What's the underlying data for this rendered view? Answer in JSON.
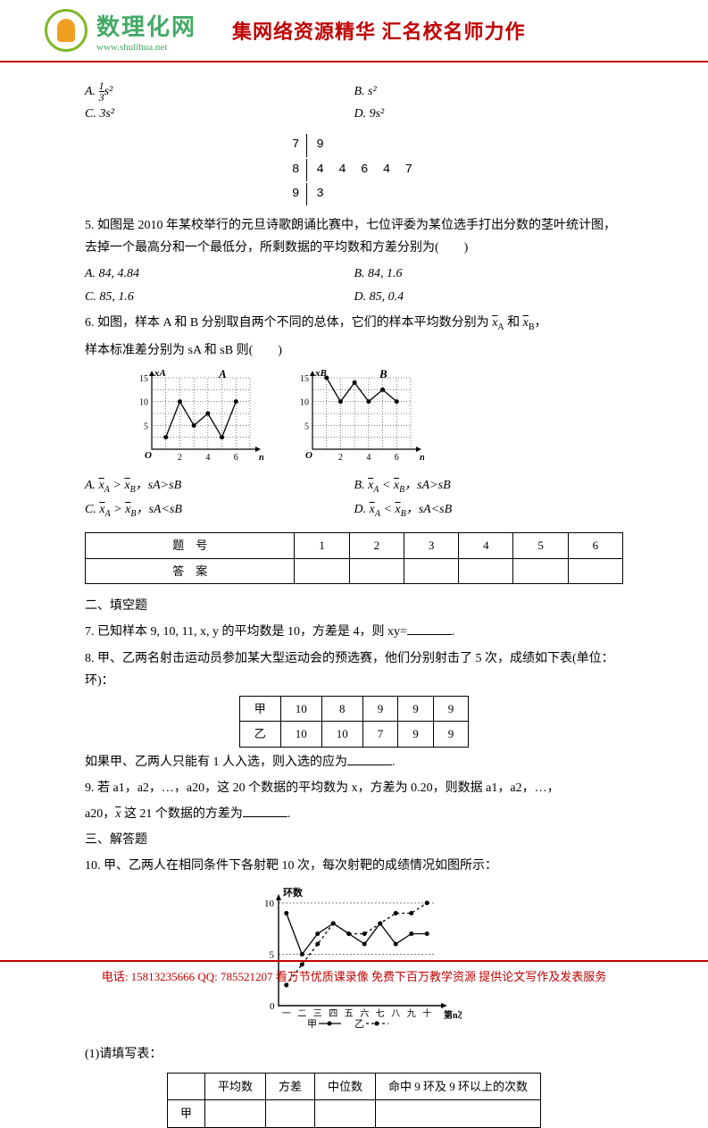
{
  "header": {
    "brand_cn": "数理化网",
    "brand_url": "www.shulihua.net",
    "slogan": "集网络资源精华 汇名校名师力作"
  },
  "q4_options": {
    "A_prefix": "A. ",
    "A_frac_num": "1",
    "A_frac_den": "3",
    "A_suffix": "s²",
    "B": "B.  s²",
    "C": "C.  3s²",
    "D": "D.  9s²"
  },
  "stem_leaf": {
    "rows": [
      {
        "stem": "7",
        "leaf": "9"
      },
      {
        "stem": "8",
        "leaf": "4 4 6 4 7"
      },
      {
        "stem": "9",
        "leaf": "3"
      }
    ]
  },
  "q5": {
    "text": "5. 如图是 2010 年某校举行的元旦诗歌朗诵比赛中，七位评委为某位选手打出分数的茎叶统计图，去掉一个最高分和一个最低分，所剩数据的平均数和方差分别为(　　)",
    "A": "A.  84, 4.84",
    "B": "B.  84, 1.6",
    "C": "C.  85, 1.6",
    "D": "D.  85, 0.4"
  },
  "q6": {
    "text1": "6.  如图，样本 A 和 B 分别取自两个不同的总体，它们的样本平均数分别为",
    "text1_end": "和",
    "text2": "样本标准差分别为 sA 和 sB 则(　　)",
    "chartA_title": "A",
    "chartB_title": "B",
    "axis_y_ticks": [
      "15",
      "10",
      "5"
    ],
    "axis_x_ticks": [
      "2",
      "4",
      "6"
    ],
    "axis_x_label": "n",
    "axis_y_label_A": "xA",
    "axis_y_label_B": "xB",
    "chartA_data": [
      2.5,
      10,
      5,
      7.5,
      2.5,
      10
    ],
    "chartB_data": [
      15,
      10,
      14,
      10,
      12.5,
      10
    ],
    "A_a": "A. ",
    "A_b": " > ",
    "A_c": "，sA>sB",
    "B_a": "B. ",
    "B_b": " < ",
    "B_c": "，sA>sB",
    "C_a": "C. ",
    "C_b": " > ",
    "C_c": "，sA<sB",
    "D_a": "D. ",
    "D_b": " < ",
    "D_c": "，sA<sB"
  },
  "answer_table": {
    "h1": "题　号",
    "c1": "1",
    "c2": "2",
    "c3": "3",
    "c4": "4",
    "c5": "5",
    "c6": "6",
    "h2": "答　案"
  },
  "section2": "二、填空题",
  "q7": "7.  已知样本 9, 10, 11,  x,  y 的平均数是 10，方差是 4，则 xy=",
  "q8": {
    "text": "8.  甲、乙两名射击运动员参加某大型运动会的预选赛，他们分别射击了 5 次，成绩如下表(单位：环)：",
    "table": {
      "r1": [
        "甲",
        "10",
        "8",
        "9",
        "9",
        "9"
      ],
      "r2": [
        "乙",
        "10",
        "10",
        "7",
        "9",
        "9"
      ]
    },
    "post": "如果甲、乙两人只能有 1 人入选，则入选的应为"
  },
  "q9": {
    "l1": "9.  若 a1，a2，…，a20，这 20 个数据的平均数为 x，方差为 0.20，则数据 a1，a2，…，",
    "l2a": "a20，",
    "l2b": " 这 21 个数据的方差为"
  },
  "section3": "三、解答题",
  "q10": {
    "text": "10.  甲、乙两人在相同条件下各射靶 10 次，每次射靶的成绩情况如图所示：",
    "y_label": "环数",
    "y_ticks": [
      "10",
      "5"
    ],
    "x_ticks": [
      "一",
      "二",
      "三",
      "四",
      "五",
      "六",
      "七",
      "八",
      "九",
      "十"
    ],
    "x_label": "第n次",
    "legend_jia": "甲",
    "legend_yi": "乙",
    "jia_data": [
      9,
      5,
      7,
      8,
      7,
      6,
      8,
      6,
      7,
      7
    ],
    "yi_data": [
      2,
      4,
      6,
      8,
      7,
      7,
      8,
      9,
      9,
      10
    ],
    "sub1": "(1)请填写表：",
    "table": {
      "h": [
        "",
        "平均数",
        "方差",
        "中位数",
        "命中 9 环及 9 环以上的次数"
      ],
      "r1": "甲"
    }
  },
  "footer": {
    "tel_label": "电话: ",
    "tel": "15813235666",
    "qq_label": " QQ: ",
    "qq": "785521207",
    "text": " 看万节优质课录像 免费下百万教学资源 提供论文写作及发表服务"
  }
}
